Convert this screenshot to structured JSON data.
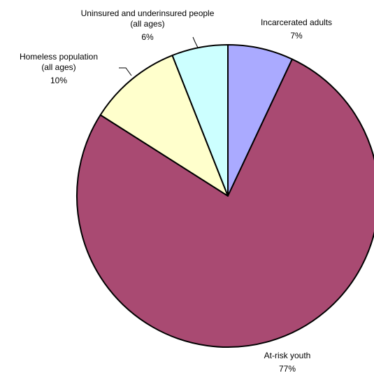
{
  "chart_data": {
    "type": "pie",
    "title": "",
    "slices": [
      {
        "label": "Incarcerated adults",
        "label_lines": [
          "Incarcerated adults"
        ],
        "value": 7,
        "value_label": "7%",
        "color": "#aaaaff"
      },
      {
        "label": "At-risk youth",
        "label_lines": [
          "At-risk youth"
        ],
        "value": 77,
        "value_label": "77%",
        "color": "#a94a72"
      },
      {
        "label": "Homeless population (all ages)",
        "label_lines": [
          "Homeless population",
          "(all ages)"
        ],
        "value": 10,
        "value_label": "10%",
        "color": "#ffffcc"
      },
      {
        "label": "Uninsured and underinsured people (all ages)",
        "label_lines": [
          "Uninsured and underinsured people",
          "(all ages)"
        ],
        "value": 6,
        "value_label": "6%",
        "color": "#ccffff"
      }
    ],
    "start_angle": "12 o'clock",
    "direction": "clockwise",
    "legend": "none",
    "data_labels": "outside with leader lines"
  }
}
